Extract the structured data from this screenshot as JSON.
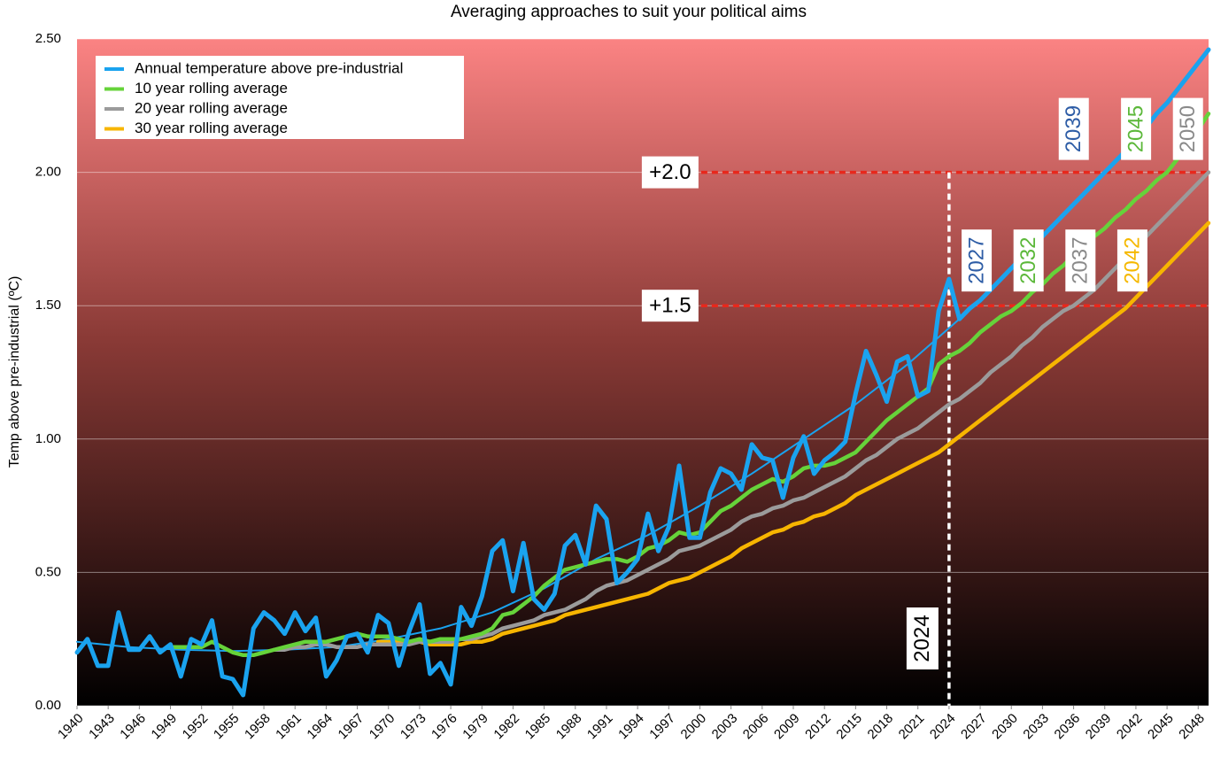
{
  "chart_data": {
    "type": "line",
    "title": "Averaging approaches to suit your political aims",
    "y_label": "Temp above pre-industrial (ºC)",
    "x": [
      1940,
      1941,
      1942,
      1943,
      1944,
      1945,
      1946,
      1947,
      1948,
      1949,
      1950,
      1951,
      1952,
      1953,
      1954,
      1955,
      1956,
      1957,
      1958,
      1959,
      1960,
      1961,
      1962,
      1963,
      1964,
      1965,
      1966,
      1967,
      1968,
      1969,
      1970,
      1971,
      1972,
      1973,
      1974,
      1975,
      1976,
      1977,
      1978,
      1979,
      1980,
      1981,
      1982,
      1983,
      1984,
      1985,
      1986,
      1987,
      1988,
      1989,
      1990,
      1991,
      1992,
      1993,
      1994,
      1995,
      1996,
      1997,
      1998,
      1999,
      2000,
      2001,
      2002,
      2003,
      2004,
      2005,
      2006,
      2007,
      2008,
      2009,
      2010,
      2011,
      2012,
      2013,
      2014,
      2015,
      2016,
      2017,
      2018,
      2019,
      2020,
      2021,
      2022,
      2023,
      2024,
      2025,
      2026,
      2027,
      2028,
      2029,
      2030,
      2031,
      2032,
      2033,
      2034,
      2035,
      2036,
      2037,
      2038,
      2039,
      2040,
      2041,
      2042,
      2043,
      2044,
      2045,
      2046,
      2047,
      2048,
      2049
    ],
    "series": [
      {
        "name": "Annual temperature above pre-industrial",
        "color": "#1aa3ef",
        "values": [
          0.2,
          0.25,
          0.15,
          0.15,
          0.35,
          0.21,
          0.21,
          0.26,
          0.2,
          0.23,
          0.11,
          0.25,
          0.23,
          0.32,
          0.11,
          0.1,
          0.04,
          0.29,
          0.35,
          0.32,
          0.27,
          0.35,
          0.28,
          0.33,
          0.11,
          0.17,
          0.26,
          0.27,
          0.2,
          0.34,
          0.31,
          0.15,
          0.28,
          0.38,
          0.12,
          0.16,
          0.08,
          0.37,
          0.3,
          0.41,
          0.58,
          0.62,
          0.43,
          0.61,
          0.4,
          0.36,
          0.42,
          0.6,
          0.64,
          0.53,
          0.75,
          0.7,
          0.46,
          0.5,
          0.55,
          0.72,
          0.58,
          0.67,
          0.9,
          0.63,
          0.63,
          0.8,
          0.89,
          0.87,
          0.81,
          0.98,
          0.93,
          0.92,
          0.78,
          0.93,
          1.01,
          0.87,
          0.92,
          0.95,
          0.99,
          1.17,
          1.33,
          1.24,
          1.14,
          1.29,
          1.31,
          1.16,
          1.18,
          1.48,
          1.6,
          1.45,
          1.49,
          1.52,
          1.56,
          1.6,
          1.64,
          1.68,
          1.72,
          1.76,
          1.8,
          1.84,
          1.88,
          1.92,
          1.96,
          2.0,
          2.04,
          2.08,
          2.13,
          2.17,
          2.22,
          2.26,
          2.31,
          2.36,
          2.41,
          2.46
        ]
      },
      {
        "name": "10 year rolling average",
        "color": "#66d33a",
        "values": [
          null,
          null,
          null,
          null,
          null,
          null,
          null,
          null,
          null,
          0.22,
          0.22,
          0.22,
          0.22,
          0.24,
          0.22,
          0.2,
          0.19,
          0.19,
          0.2,
          0.21,
          0.22,
          0.23,
          0.24,
          0.24,
          0.24,
          0.25,
          0.26,
          0.27,
          0.26,
          0.26,
          0.26,
          0.25,
          0.24,
          0.25,
          0.24,
          0.25,
          0.25,
          0.25,
          0.26,
          0.27,
          0.29,
          0.34,
          0.35,
          0.38,
          0.41,
          0.45,
          0.48,
          0.51,
          0.52,
          0.53,
          0.54,
          0.55,
          0.55,
          0.54,
          0.56,
          0.59,
          0.6,
          0.62,
          0.65,
          0.64,
          0.65,
          0.69,
          0.73,
          0.75,
          0.78,
          0.81,
          0.83,
          0.85,
          0.84,
          0.86,
          0.89,
          0.9,
          0.9,
          0.91,
          0.93,
          0.95,
          0.99,
          1.03,
          1.07,
          1.1,
          1.13,
          1.16,
          1.19,
          1.28,
          1.31,
          1.33,
          1.36,
          1.4,
          1.43,
          1.46,
          1.48,
          1.51,
          1.55,
          1.58,
          1.62,
          1.65,
          1.69,
          1.72,
          1.76,
          1.79,
          1.83,
          1.86,
          1.9,
          1.93,
          1.97,
          2.0,
          2.05,
          2.1,
          2.16,
          2.22
        ]
      },
      {
        "name": "20 year rolling average",
        "color": "#9b9b9b",
        "values": [
          null,
          null,
          null,
          null,
          null,
          null,
          null,
          null,
          null,
          null,
          null,
          null,
          null,
          null,
          null,
          null,
          null,
          null,
          null,
          0.21,
          0.21,
          0.22,
          0.22,
          0.23,
          0.23,
          0.22,
          0.22,
          0.22,
          0.23,
          0.23,
          0.23,
          0.23,
          0.23,
          0.24,
          0.24,
          0.24,
          0.24,
          0.25,
          0.25,
          0.26,
          0.27,
          0.29,
          0.3,
          0.31,
          0.32,
          0.34,
          0.35,
          0.36,
          0.38,
          0.4,
          0.43,
          0.45,
          0.46,
          0.47,
          0.49,
          0.51,
          0.53,
          0.55,
          0.58,
          0.59,
          0.6,
          0.62,
          0.64,
          0.66,
          0.69,
          0.71,
          0.72,
          0.74,
          0.75,
          0.77,
          0.78,
          0.8,
          0.82,
          0.84,
          0.86,
          0.89,
          0.92,
          0.94,
          0.97,
          1.0,
          1.02,
          1.04,
          1.07,
          1.1,
          1.13,
          1.15,
          1.18,
          1.21,
          1.25,
          1.28,
          1.31,
          1.35,
          1.38,
          1.42,
          1.45,
          1.48,
          1.5,
          1.53,
          1.56,
          1.6,
          1.64,
          1.68,
          1.72,
          1.76,
          1.8,
          1.84,
          1.88,
          1.92,
          1.96,
          2.0
        ]
      },
      {
        "name": "30 year rolling average",
        "color": "#f7b500",
        "values": [
          null,
          null,
          null,
          null,
          null,
          null,
          null,
          null,
          null,
          null,
          null,
          null,
          null,
          null,
          null,
          null,
          null,
          null,
          null,
          null,
          null,
          null,
          null,
          null,
          null,
          null,
          null,
          null,
          null,
          0.24,
          0.24,
          0.24,
          0.24,
          0.24,
          0.23,
          0.23,
          0.23,
          0.23,
          0.24,
          0.24,
          0.25,
          0.27,
          0.28,
          0.29,
          0.3,
          0.31,
          0.32,
          0.34,
          0.35,
          0.36,
          0.37,
          0.38,
          0.39,
          0.4,
          0.41,
          0.42,
          0.44,
          0.46,
          0.47,
          0.48,
          0.5,
          0.52,
          0.54,
          0.56,
          0.59,
          0.61,
          0.63,
          0.65,
          0.66,
          0.68,
          0.69,
          0.71,
          0.72,
          0.74,
          0.76,
          0.79,
          0.81,
          0.83,
          0.85,
          0.87,
          0.89,
          0.91,
          0.93,
          0.95,
          0.98,
          1.01,
          1.04,
          1.07,
          1.1,
          1.13,
          1.16,
          1.19,
          1.22,
          1.25,
          1.28,
          1.31,
          1.34,
          1.37,
          1.4,
          1.43,
          1.46,
          1.49,
          1.53,
          1.57,
          1.61,
          1.65,
          1.69,
          1.73,
          1.77,
          1.81
        ]
      }
    ],
    "trend": {
      "color": "#1aa3ef",
      "x": [
        1940,
        1945,
        1950,
        1955,
        1960,
        1965,
        1970,
        1975,
        1980,
        1985,
        1990,
        1995,
        2000,
        2005,
        2010,
        2015,
        2020,
        2025
      ],
      "values": [
        0.24,
        0.22,
        0.21,
        0.205,
        0.21,
        0.22,
        0.25,
        0.29,
        0.35,
        0.44,
        0.55,
        0.64,
        0.75,
        0.87,
        1.0,
        1.13,
        1.28,
        1.45
      ]
    },
    "xlim": [
      1940,
      2049
    ],
    "xticks": [
      1940,
      1943,
      1946,
      1949,
      1952,
      1955,
      1958,
      1961,
      1964,
      1967,
      1970,
      1973,
      1976,
      1979,
      1982,
      1985,
      1988,
      1991,
      1994,
      1997,
      2000,
      2003,
      2006,
      2009,
      2012,
      2015,
      2018,
      2021,
      2024,
      2027,
      2030,
      2033,
      2036,
      2039,
      2042,
      2045,
      2048
    ],
    "ylim": [
      0,
      2.5
    ],
    "yticks": [
      {
        "value": 0,
        "label": "0.00"
      },
      {
        "value": 0.5,
        "label": "0.50"
      },
      {
        "value": 1,
        "label": "1.00"
      },
      {
        "value": 1.5,
        "label": "1.50"
      },
      {
        "value": 2,
        "label": "2.00"
      },
      {
        "value": 2.5,
        "label": "2.50"
      }
    ],
    "grid": true,
    "legend": "upper left",
    "hlines": [
      {
        "value": 1.5,
        "label": "+1.5",
        "color": "#e8281c"
      },
      {
        "value": 2,
        "label": "+2.0",
        "color": "#e8281c"
      }
    ],
    "vline": {
      "value": 2024,
      "label": "2024"
    },
    "crossings": [
      {
        "value": 2027,
        "label": "2027",
        "y": 1.5,
        "color": "#2e5da6"
      },
      {
        "value": 2032,
        "label": "2032",
        "y": 1.5,
        "color": "#5cb83a"
      },
      {
        "value": 2037,
        "label": "2037",
        "y": 1.5,
        "color": "#8a8a8a"
      },
      {
        "value": 2042,
        "label": "2042",
        "y": 1.5,
        "color": "#f5b800"
      },
      {
        "value": 2039,
        "label": "2039",
        "y": 2,
        "color": "#2e5da6"
      },
      {
        "value": 2045,
        "label": "2045",
        "y": 2,
        "color": "#5cb83a"
      },
      {
        "value": 2050,
        "label": "2050",
        "y": 2,
        "color": "#8a8a8a"
      }
    ]
  }
}
